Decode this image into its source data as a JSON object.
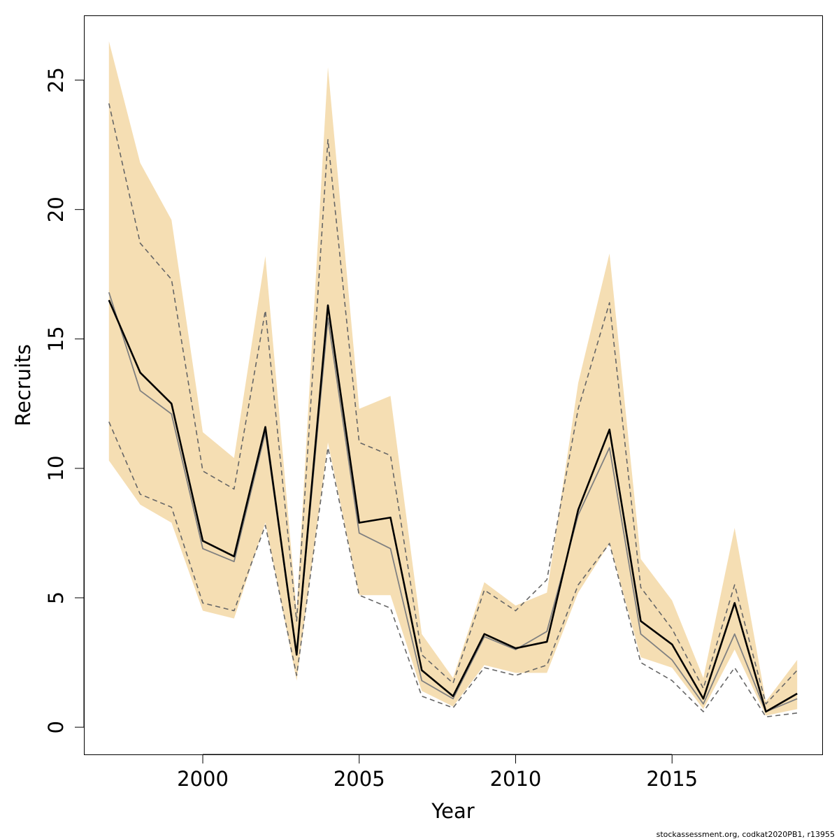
{
  "chart_data": {
    "type": "line",
    "xlabel": "Year",
    "ylabel": "Recruits",
    "xlim": [
      1996.2,
      2019.8
    ],
    "ylim": [
      -1.05,
      27.5
    ],
    "x_ticks": [
      "2000",
      "2005",
      "2010",
      "2015"
    ],
    "y_ticks": [
      "0",
      "5",
      "10",
      "15",
      "20",
      "25"
    ],
    "grid": false,
    "legend": "none",
    "credit": "stockassessment.org, codkat2020PB1, r13955",
    "colors": {
      "band": "#f5deb3",
      "estimate": "#000000",
      "comparison": "#808080",
      "comparison_interval": "#666666",
      "frame": "#000000"
    },
    "x": [
      1997,
      1998,
      1999,
      2000,
      2001,
      2002,
      2003,
      2004,
      2005,
      2006,
      2007,
      2008,
      2009,
      2010,
      2011,
      2012,
      2013,
      2014,
      2015,
      2016,
      2017,
      2018,
      2019
    ],
    "series": [
      {
        "role": "band",
        "lower": [
          10.3,
          8.6,
          7.9,
          4.5,
          4.2,
          7.9,
          1.8,
          11.0,
          5.1,
          5.1,
          1.4,
          0.8,
          2.4,
          2.1,
          2.1,
          5.2,
          7.1,
          2.7,
          2.3,
          0.7,
          3.0,
          0.45,
          0.7
        ],
        "upper": [
          26.5,
          21.8,
          19.6,
          11.4,
          10.4,
          18.2,
          4.5,
          25.5,
          12.3,
          12.8,
          3.6,
          1.9,
          5.6,
          4.7,
          5.2,
          13.3,
          18.3,
          6.5,
          4.9,
          1.9,
          7.7,
          1.0,
          2.6
        ]
      },
      {
        "role": "estimate",
        "values": [
          16.5,
          13.7,
          12.5,
          7.2,
          6.6,
          11.6,
          2.8,
          16.3,
          7.9,
          8.1,
          2.2,
          1.2,
          3.6,
          3.05,
          3.3,
          8.4,
          11.5,
          4.1,
          3.2,
          1.1,
          4.8,
          0.6,
          1.3
        ]
      },
      {
        "role": "comparison",
        "values": [
          16.8,
          13.0,
          12.1,
          6.9,
          6.4,
          11.4,
          2.8,
          15.8,
          7.5,
          6.9,
          1.8,
          1.1,
          3.5,
          3.0,
          3.7,
          8.2,
          10.8,
          3.6,
          2.6,
          0.9,
          3.6,
          0.6,
          1.1
        ]
      },
      {
        "role": "comparison-lower",
        "values": [
          11.8,
          9.0,
          8.5,
          4.8,
          4.5,
          7.8,
          2.0,
          10.8,
          5.1,
          4.6,
          1.2,
          0.75,
          2.3,
          2.0,
          2.4,
          5.5,
          7.1,
          2.5,
          1.8,
          0.6,
          2.3,
          0.4,
          0.55
        ]
      },
      {
        "role": "comparison-upper",
        "values": [
          24.1,
          18.7,
          17.3,
          9.9,
          9.2,
          16.1,
          4.1,
          22.7,
          11.0,
          10.5,
          2.8,
          1.7,
          5.3,
          4.5,
          5.7,
          12.3,
          16.4,
          5.4,
          3.8,
          1.5,
          5.5,
          0.9,
          2.2
        ]
      }
    ]
  }
}
